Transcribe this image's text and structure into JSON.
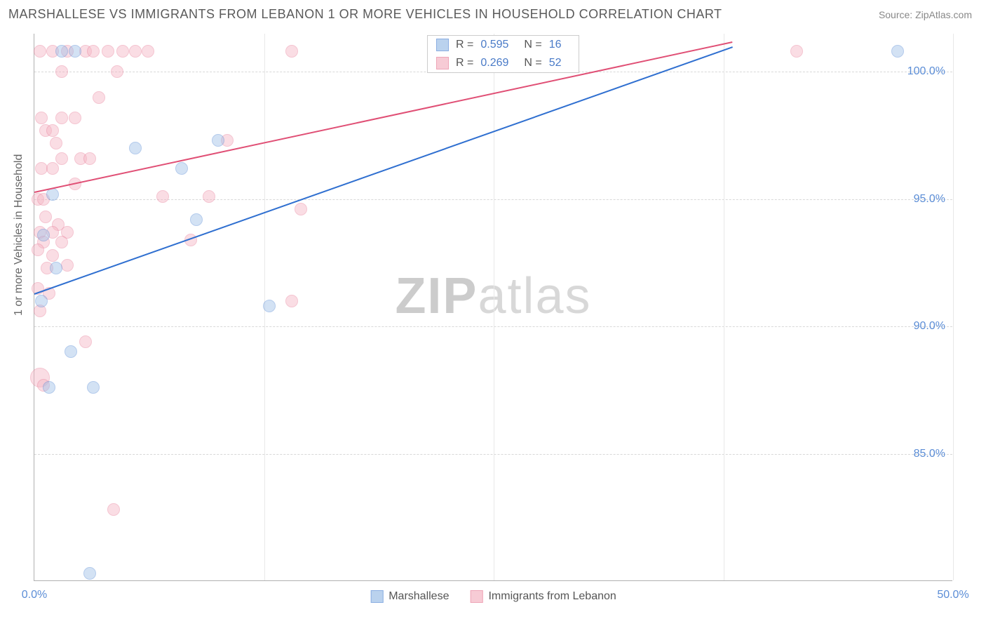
{
  "header": {
    "title": "MARSHALLESE VS IMMIGRANTS FROM LEBANON 1 OR MORE VEHICLES IN HOUSEHOLD CORRELATION CHART",
    "source": "Source: ZipAtlas.com"
  },
  "chart": {
    "type": "scatter",
    "ylabel": "1 or more Vehicles in Household",
    "xlim": [
      0,
      50
    ],
    "ylim": [
      80,
      101.5
    ],
    "xtick_labels": [
      "0.0%",
      "50.0%"
    ],
    "xtick_positions": [
      0,
      50
    ],
    "xgrid_positions": [
      12.5,
      25,
      37.5,
      50
    ],
    "ytick_labels": [
      "85.0%",
      "90.0%",
      "95.0%",
      "100.0%"
    ],
    "ytick_positions": [
      85,
      90,
      95,
      100
    ],
    "grid_color": "#d8d8d8",
    "axis_color": "#b0b0b0",
    "background_color": "#ffffff",
    "watermark_text_bold": "ZIP",
    "watermark_text_rest": "atlas"
  },
  "series": {
    "marshallese": {
      "label": "Marshallese",
      "fill_color": "#9ebfe8",
      "stroke_color": "#5b8dd6",
      "fill_opacity": 0.45,
      "marker_radius": 9,
      "R": "0.595",
      "N": "16",
      "trendline": {
        "x1": 0,
        "y1": 91.3,
        "x2": 38,
        "y2": 101.0,
        "color": "#2f6fd0",
        "width": 2
      },
      "points": [
        {
          "x": 1.2,
          "y": 92.3
        },
        {
          "x": 0.8,
          "y": 87.6
        },
        {
          "x": 3.2,
          "y": 87.6
        },
        {
          "x": 2.0,
          "y": 89.0
        },
        {
          "x": 5.5,
          "y": 97.0
        },
        {
          "x": 8.0,
          "y": 96.2
        },
        {
          "x": 10.0,
          "y": 97.3
        },
        {
          "x": 8.8,
          "y": 94.2
        },
        {
          "x": 12.8,
          "y": 90.8
        },
        {
          "x": 47.0,
          "y": 100.8
        },
        {
          "x": 3.0,
          "y": 80.3
        },
        {
          "x": 0.5,
          "y": 93.6
        },
        {
          "x": 1.5,
          "y": 100.8
        },
        {
          "x": 2.2,
          "y": 100.8
        },
        {
          "x": 1.0,
          "y": 95.2
        },
        {
          "x": 0.4,
          "y": 91.0
        }
      ]
    },
    "lebanon": {
      "label": "Immigrants from Lebanon",
      "fill_color": "#f5b6c4",
      "stroke_color": "#e87f9a",
      "fill_opacity": 0.45,
      "marker_radius": 9,
      "R": "0.269",
      "N": "52",
      "trendline": {
        "x1": 0,
        "y1": 95.3,
        "x2": 38,
        "y2": 101.2,
        "color": "#e04f75",
        "width": 2
      },
      "points": [
        {
          "x": 0.3,
          "y": 100.8
        },
        {
          "x": 1.0,
          "y": 100.8
        },
        {
          "x": 1.8,
          "y": 100.8
        },
        {
          "x": 2.8,
          "y": 100.8
        },
        {
          "x": 3.2,
          "y": 100.8
        },
        {
          "x": 4.0,
          "y": 100.8
        },
        {
          "x": 4.8,
          "y": 100.8
        },
        {
          "x": 5.5,
          "y": 100.8
        },
        {
          "x": 6.2,
          "y": 100.8
        },
        {
          "x": 14.0,
          "y": 100.8
        },
        {
          "x": 41.5,
          "y": 100.8
        },
        {
          "x": 1.5,
          "y": 100.0
        },
        {
          "x": 4.5,
          "y": 100.0
        },
        {
          "x": 3.5,
          "y": 99.0
        },
        {
          "x": 0.4,
          "y": 98.2
        },
        {
          "x": 1.5,
          "y": 98.2
        },
        {
          "x": 2.2,
          "y": 98.2
        },
        {
          "x": 0.6,
          "y": 97.7
        },
        {
          "x": 1.0,
          "y": 97.7
        },
        {
          "x": 10.5,
          "y": 97.3
        },
        {
          "x": 1.2,
          "y": 97.2
        },
        {
          "x": 1.5,
          "y": 96.6
        },
        {
          "x": 2.5,
          "y": 96.6
        },
        {
          "x": 3.0,
          "y": 96.6
        },
        {
          "x": 0.4,
          "y": 96.2
        },
        {
          "x": 1.0,
          "y": 96.2
        },
        {
          "x": 2.2,
          "y": 95.6
        },
        {
          "x": 0.2,
          "y": 95.0
        },
        {
          "x": 0.5,
          "y": 95.0
        },
        {
          "x": 7.0,
          "y": 95.1
        },
        {
          "x": 9.5,
          "y": 95.1
        },
        {
          "x": 14.5,
          "y": 94.6
        },
        {
          "x": 0.6,
          "y": 94.3
        },
        {
          "x": 1.3,
          "y": 94.0
        },
        {
          "x": 0.3,
          "y": 93.7
        },
        {
          "x": 1.0,
          "y": 93.7
        },
        {
          "x": 1.8,
          "y": 93.7
        },
        {
          "x": 0.5,
          "y": 93.3
        },
        {
          "x": 1.5,
          "y": 93.3
        },
        {
          "x": 8.5,
          "y": 93.4
        },
        {
          "x": 0.2,
          "y": 93.0
        },
        {
          "x": 1.0,
          "y": 92.8
        },
        {
          "x": 0.7,
          "y": 92.3
        },
        {
          "x": 1.8,
          "y": 92.4
        },
        {
          "x": 0.2,
          "y": 91.5
        },
        {
          "x": 0.8,
          "y": 91.3
        },
        {
          "x": 14.0,
          "y": 91.0
        },
        {
          "x": 0.3,
          "y": 90.6
        },
        {
          "x": 2.8,
          "y": 89.4
        },
        {
          "x": 0.3,
          "y": 88.0,
          "r": 14
        },
        {
          "x": 0.5,
          "y": 87.7
        },
        {
          "x": 4.3,
          "y": 82.8
        }
      ]
    }
  },
  "legend_stats_labels": {
    "R": "R =",
    "N": "N ="
  },
  "bottom_legend": {
    "items": [
      "marshallese",
      "lebanon"
    ]
  }
}
